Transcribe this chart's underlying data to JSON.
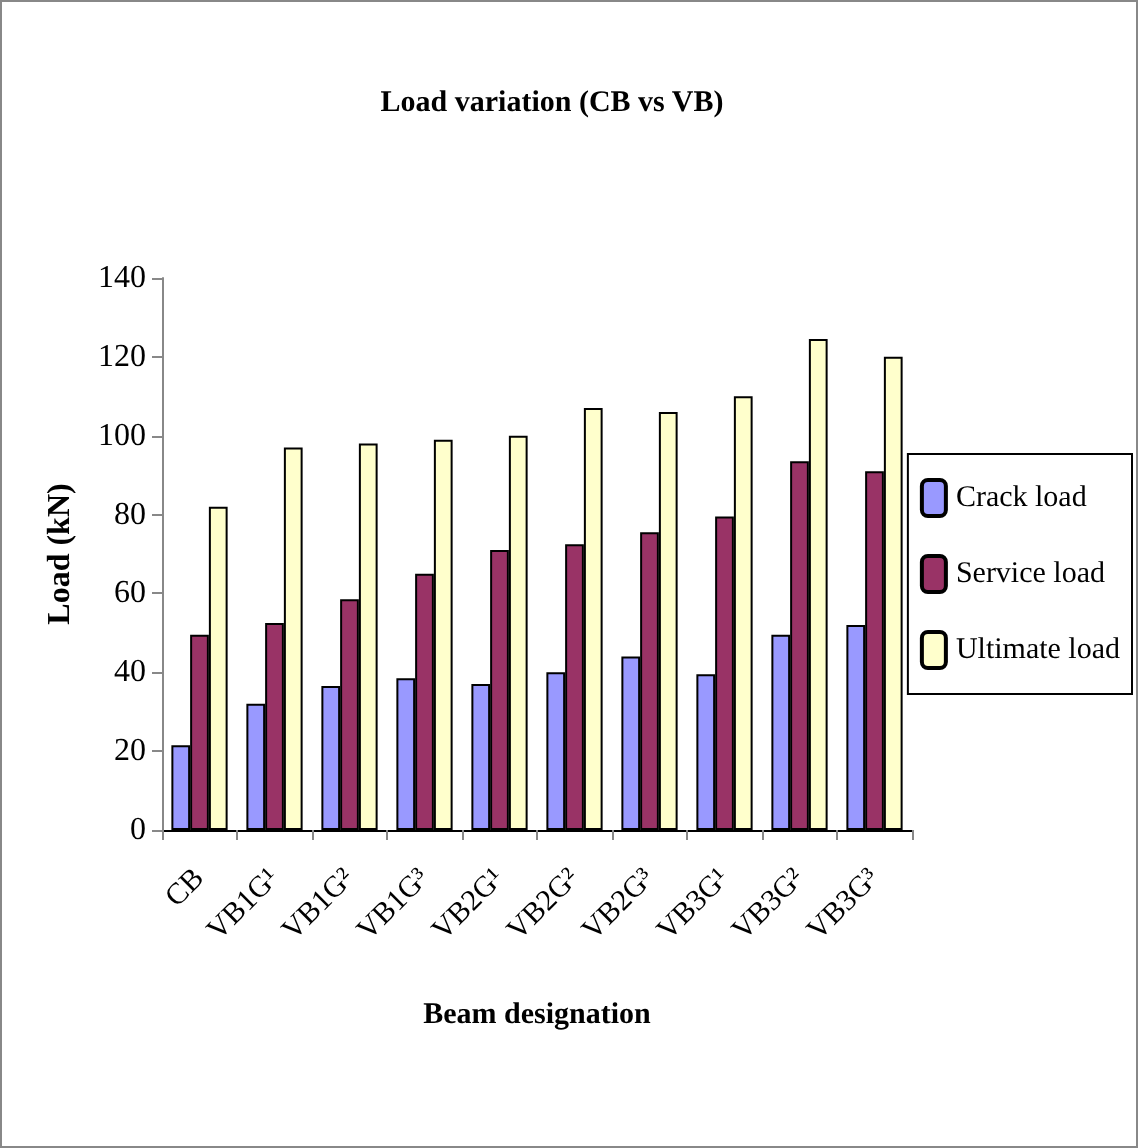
{
  "chart_data": {
    "type": "bar",
    "title": "Load variation (CB vs VB)",
    "xlabel": "Beam designation",
    "ylabel": "Load (kN)",
    "categories": [
      "CB",
      "VB1G¹",
      "VB1G²",
      "VB1G³",
      "VB2G¹",
      "VB2G²",
      "VB2G³",
      "VB3G¹",
      "VB3G²",
      "VB3G³"
    ],
    "series": [
      {
        "name": "Crack load",
        "color": "#9999ff",
        "values": [
          21.5,
          32,
          36.5,
          38.5,
          37,
          40,
          44,
          39.5,
          49.5,
          52
        ]
      },
      {
        "name": "Service load",
        "color": "#993366",
        "values": [
          49.5,
          52.5,
          58.5,
          65,
          71,
          72.5,
          75.5,
          79.5,
          93.5,
          91
        ]
      },
      {
        "name": "Ultimate load",
        "color": "#ffffcc",
        "values": [
          82,
          97,
          98,
          99,
          100,
          107,
          106,
          110,
          124.5,
          120
        ]
      }
    ],
    "ylim": [
      0,
      140
    ],
    "yticks": [
      0,
      20,
      40,
      60,
      80,
      100,
      120,
      140
    ],
    "grid": false,
    "legend": "right"
  }
}
